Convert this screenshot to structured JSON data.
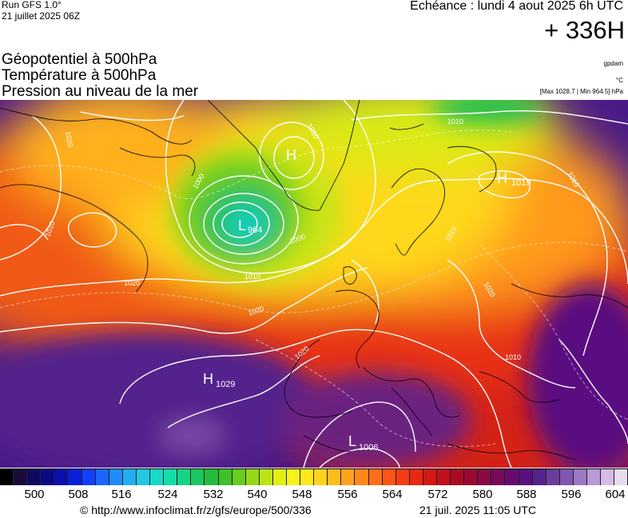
{
  "header": {
    "run_label": "Run GFS 1.0°",
    "run_date": "21 juillet 2025 06Z",
    "echeance": "Echéance : lundi 4 aout 2025 6h UTC",
    "horizon": "+ 336H"
  },
  "titles": {
    "line1": "Géopotentiel à 500hPa",
    "line2": "Température à 500hPa",
    "line3": "Pression au niveau de la mer"
  },
  "units": {
    "geopotential": "gpdam",
    "temperature": "°C",
    "pressure_range": "[Max 1028.7 | Min 964.5] hPa"
  },
  "pressure_centers": [
    {
      "letter": "H",
      "value": "1019"
    },
    {
      "letter": "L",
      "value": "964"
    },
    {
      "letter": "H",
      "value": "1029"
    },
    {
      "letter": "L",
      "value": "1006"
    },
    {
      "letter": "H",
      "value": ""
    }
  ],
  "isobar_labels": [
    "1020",
    "1010",
    "1010",
    "1000",
    "1000",
    "1010",
    "1010",
    "1020",
    "1020",
    "1020",
    "1010",
    "1020",
    "1010",
    "1010"
  ],
  "colorbar": {
    "ticks": [
      "500",
      "508",
      "516",
      "524",
      "532",
      "540",
      "548",
      "556",
      "564",
      "572",
      "580",
      "588",
      "596",
      "604"
    ],
    "colors": [
      "#000000",
      "#1a0a3c",
      "#0c0a5e",
      "#0a0a84",
      "#0a10b0",
      "#0a20d8",
      "#1040ff",
      "#1a66ff",
      "#1e8cff",
      "#20aef0",
      "#20c8e0",
      "#18d8c8",
      "#14ddaa",
      "#16d486",
      "#1ac860",
      "#24bc3e",
      "#40c028",
      "#68cc1e",
      "#94d818",
      "#bce414",
      "#e2ee14",
      "#f8f418",
      "#ffe81a",
      "#ffd21c",
      "#ffbc1c",
      "#ffa21c",
      "#ff881a",
      "#ff6e18",
      "#ff5416",
      "#f43c14",
      "#e82814",
      "#d41814",
      "#c0101c",
      "#ac0a24",
      "#980a30",
      "#880a44",
      "#780a5a",
      "#660a70",
      "#5a1080",
      "#52248c",
      "#6a3c9c",
      "#8056b0",
      "#9c78c4",
      "#b89ad6",
      "#d4bce6",
      "#e8dcf0"
    ]
  },
  "footer": {
    "credit": "© http://www.infoclimat.fr/z/gfs/europe/500/336",
    "generated": "21 juil. 2025 11:05 UTC"
  }
}
